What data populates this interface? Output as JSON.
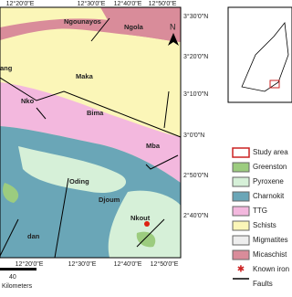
{
  "map": {
    "top_labels": [
      "12°20'0\"E",
      "12°30'0\"E",
      "12°40'0\"E",
      "12°50'0\"E"
    ],
    "bottom_labels": [
      "12°20'0\"E",
      "12°30'0\"E",
      "12°40'0\"E",
      "12°50'0\"E"
    ],
    "right_labels": [
      "3°30'0\"N",
      "3°20'0\"N",
      "3°10'0\"N",
      "3°0'0\"N",
      "2°50'0\"N",
      "2°40'0\"N"
    ],
    "north": "N",
    "towns": [
      "Ngounayos",
      "Ngola",
      "Maka",
      "Bima",
      "Nko",
      "Mba",
      "Oding",
      "Djoum",
      "Nkout",
      "ang",
      "dan"
    ],
    "scale": [
      "40",
      "Kilometers"
    ]
  },
  "legend": [
    "Study area",
    "Greenston",
    "Pyroxene",
    "Charnokit",
    "TTG",
    "Schists",
    "Migmatites",
    "Micaschist",
    "Known iron",
    "Faults"
  ]
}
